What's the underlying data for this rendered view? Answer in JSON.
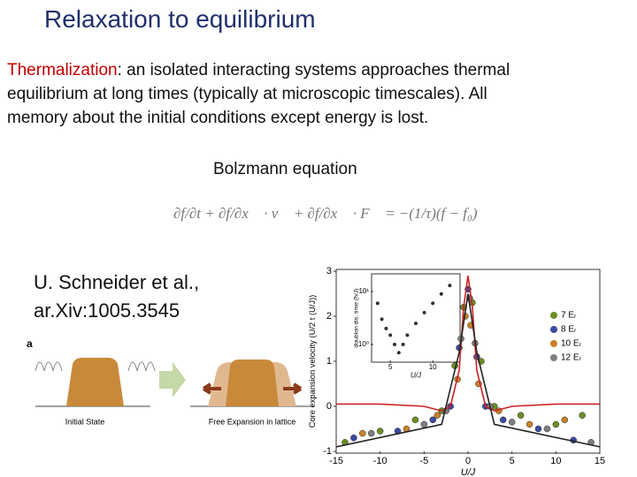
{
  "header": {
    "title": "Relaxation to equilibrium"
  },
  "body": {
    "term": "Thermalization",
    "lines": [
      ": an isolated interacting systems approaches thermal",
      "equilibrium at long times (typically at microscopic timescales). All",
      "memory about the initial conditions except energy is lost."
    ],
    "equation_caption": "Bolzmann equation",
    "equation": "∂f/∂t + ∂f/∂x⃗ · v⃗ + ∂f/∂x⃗ · F⃗ = −(1/τ)(f − f₀)",
    "citation": [
      "U. Schneider et al.,",
      "ar.Xiv:1005.3545"
    ]
  },
  "figure_a": {
    "label": "a",
    "captions": [
      "Initial State",
      "Free Expansion in lattice"
    ]
  },
  "chart_data": [
    {
      "type": "scatter",
      "xlabel": "U/J",
      "ylabel": "Core expansion velocity (U/2 t (U/J))",
      "xlim": [
        -15,
        15
      ],
      "ylim": [
        -1,
        3
      ],
      "xticks": [
        -15,
        -10,
        -5,
        0,
        5,
        10,
        15
      ],
      "yticks": [
        -1,
        0,
        1,
        2,
        3
      ],
      "series": [
        {
          "name": "7 Eᵣ",
          "color": "#6b8e23",
          "x": [
            -14,
            -10,
            -6,
            -3,
            -1.5,
            -0.5,
            0.5,
            1.5,
            3,
            6,
            10,
            13
          ],
          "values": [
            -0.8,
            -0.55,
            -0.3,
            -0.1,
            0.9,
            2.2,
            2.3,
            1.0,
            0,
            -0.2,
            -0.4,
            -0.2
          ]
        },
        {
          "name": "8 Eᵣ",
          "color": "#3c4aa0",
          "x": [
            -13,
            -8,
            -4,
            -2,
            -1,
            0,
            1,
            2,
            4,
            8,
            12
          ],
          "values": [
            -0.7,
            -0.55,
            -0.3,
            0,
            1.3,
            2.6,
            1.1,
            0,
            -0.3,
            -0.5,
            -0.75
          ]
        },
        {
          "name": "10 Eᵣ",
          "color": "#c8822a",
          "x": [
            -12,
            -7,
            -3.5,
            -1.2,
            -0.3,
            0.3,
            1.2,
            3.5,
            7,
            11
          ],
          "values": [
            -0.6,
            -0.5,
            -0.2,
            0.6,
            2.0,
            1.8,
            0.5,
            -0.1,
            -0.4,
            -0.3
          ]
        },
        {
          "name": "12 Eᵣ",
          "color": "#7f7f7f",
          "x": [
            -11,
            -5,
            -2.5,
            -0.8,
            0.2,
            0.8,
            2.5,
            5,
            9,
            14
          ],
          "values": [
            -0.6,
            -0.4,
            -0.1,
            1.5,
            2.4,
            1.4,
            0,
            -0.35,
            -0.5,
            -0.8
          ]
        },
        {
          "type": "line",
          "color": "#cc2222",
          "x": [
            -15,
            -10,
            -5,
            -3,
            -2,
            -1,
            -0.5,
            0,
            0.5,
            1,
            2,
            3,
            5,
            10,
            15
          ],
          "values": [
            0.05,
            0.05,
            0,
            -0.1,
            0,
            0.8,
            2.2,
            2.9,
            2.2,
            0.8,
            0,
            -0.1,
            0,
            0.05,
            0.05
          ]
        },
        {
          "type": "line",
          "color": "#222222",
          "x": [
            -15,
            -3,
            -1,
            0,
            1,
            3,
            15
          ],
          "values": [
            -0.9,
            -0.4,
            1.2,
            2.5,
            1.2,
            -0.4,
            -0.9
          ]
        }
      ]
    },
    {
      "type": "scatter",
      "xlabel": "U/J",
      "ylabel": "doublon dis. time (ħ/J)",
      "log_y": true,
      "xlim": [
        3,
        13
      ],
      "ylim": [
        0.5,
        20
      ],
      "xticks": [
        5,
        10
      ],
      "yticks": [
        {
          "value": 10,
          "label": "10¹"
        },
        {
          "value": 1,
          "label": "10⁰"
        }
      ],
      "series": [
        {
          "color": "#333333",
          "x": [
            3.5,
            4,
            4.5,
            5,
            5.5,
            6,
            6.5,
            7,
            8,
            9,
            10,
            11,
            12
          ],
          "values": [
            6,
            3,
            2,
            1.5,
            1.0,
            0.7,
            1.0,
            1.5,
            2.5,
            4,
            6,
            9,
            13
          ]
        }
      ]
    }
  ]
}
